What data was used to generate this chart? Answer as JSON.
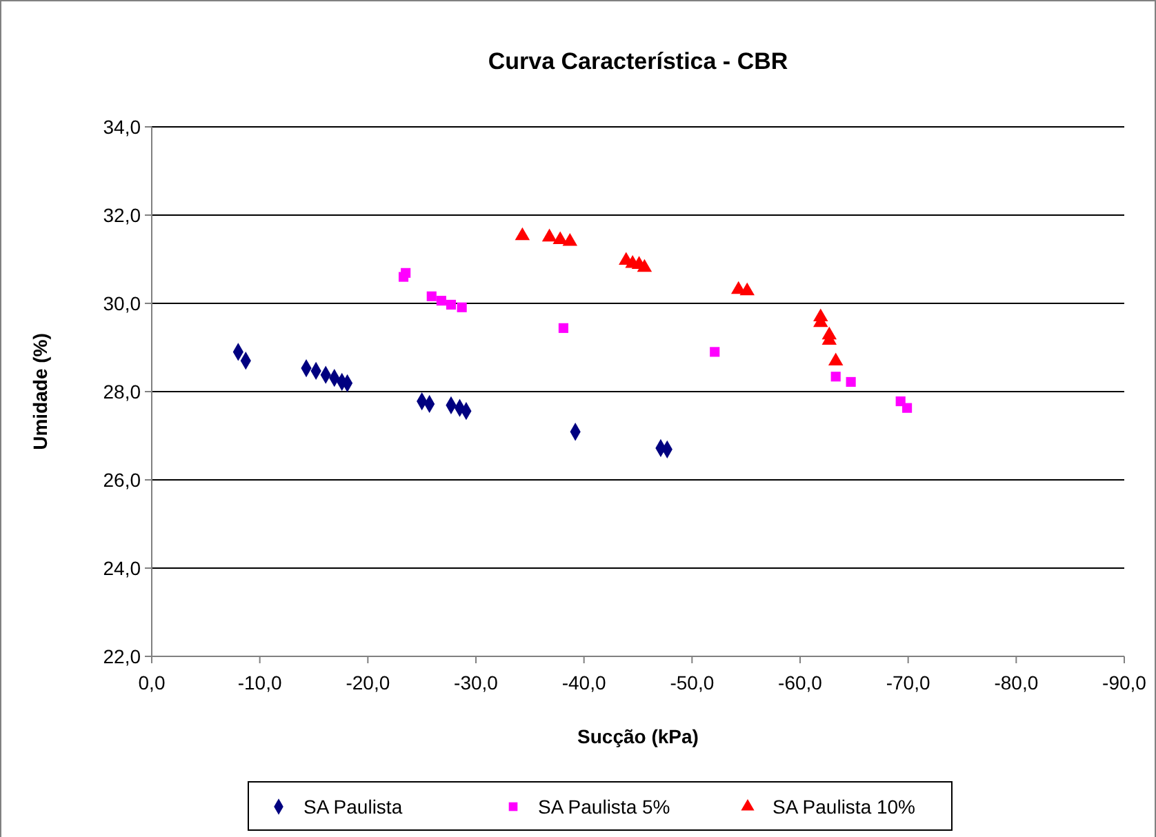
{
  "chart_data": {
    "type": "scatter",
    "title": "Curva Característica - CBR",
    "xlabel": "Sucção (kPa)",
    "ylabel": "Umidade (%)",
    "xlim": [
      0,
      -90
    ],
    "ylim": [
      22,
      34
    ],
    "xticks": [
      {
        "value": 0,
        "label": "0,0"
      },
      {
        "value": -10,
        "label": "-10,0"
      },
      {
        "value": -20,
        "label": "-20,0"
      },
      {
        "value": -30,
        "label": "-30,0"
      },
      {
        "value": -40,
        "label": "-40,0"
      },
      {
        "value": -50,
        "label": "-50,0"
      },
      {
        "value": -60,
        "label": "-60,0"
      },
      {
        "value": -70,
        "label": "-70,0"
      },
      {
        "value": -80,
        "label": "-80,0"
      },
      {
        "value": -90,
        "label": "-90,0"
      }
    ],
    "yticks": [
      {
        "value": 22,
        "label": "22,0"
      },
      {
        "value": 24,
        "label": "24,0"
      },
      {
        "value": 26,
        "label": "26,0"
      },
      {
        "value": 28,
        "label": "28,0"
      },
      {
        "value": 30,
        "label": "30,0"
      },
      {
        "value": 32,
        "label": "32,0"
      },
      {
        "value": 34,
        "label": "34,0"
      }
    ],
    "grid": "y",
    "legend": "bottom",
    "series": [
      {
        "name": "SA Paulista",
        "color": "#000080",
        "marker": "diamond",
        "x": [
          -8.0,
          -8.7,
          -14.3,
          -15.2,
          -16.1,
          -16.9,
          -17.6,
          -18.1,
          -25.0,
          -25.7,
          -27.7,
          -28.5,
          -29.1,
          -39.2,
          -47.1,
          -47.7
        ],
        "values": [
          28.9,
          28.7,
          28.53,
          28.47,
          28.38,
          28.31,
          28.22,
          28.19,
          27.78,
          27.72,
          27.69,
          27.63,
          27.56,
          27.09,
          26.72,
          26.69
        ]
      },
      {
        "name": "SA Paulista 5%",
        "color": "#ff00ff",
        "marker": "square",
        "x": [
          -23.3,
          -23.5,
          -25.9,
          -26.8,
          -27.7,
          -28.7,
          -38.1,
          -52.1,
          -63.3,
          -64.7,
          -69.3,
          -69.9
        ],
        "values": [
          30.6,
          30.69,
          30.16,
          30.06,
          29.97,
          29.91,
          29.44,
          28.9,
          28.34,
          28.22,
          27.78,
          27.63
        ]
      },
      {
        "name": "SA Paulista 10%",
        "color": "#ff0000",
        "marker": "triangle",
        "x": [
          -34.3,
          -36.8,
          -37.8,
          -38.7,
          -43.9,
          -44.5,
          -45.1,
          -45.6,
          -54.3,
          -55.1,
          -61.9,
          -61.9,
          -62.7,
          -62.7,
          -63.3
        ],
        "values": [
          31.53,
          31.5,
          31.44,
          31.4,
          30.97,
          30.9,
          30.88,
          30.81,
          30.31,
          30.28,
          29.69,
          29.56,
          29.28,
          29.16,
          28.69
        ]
      }
    ]
  }
}
